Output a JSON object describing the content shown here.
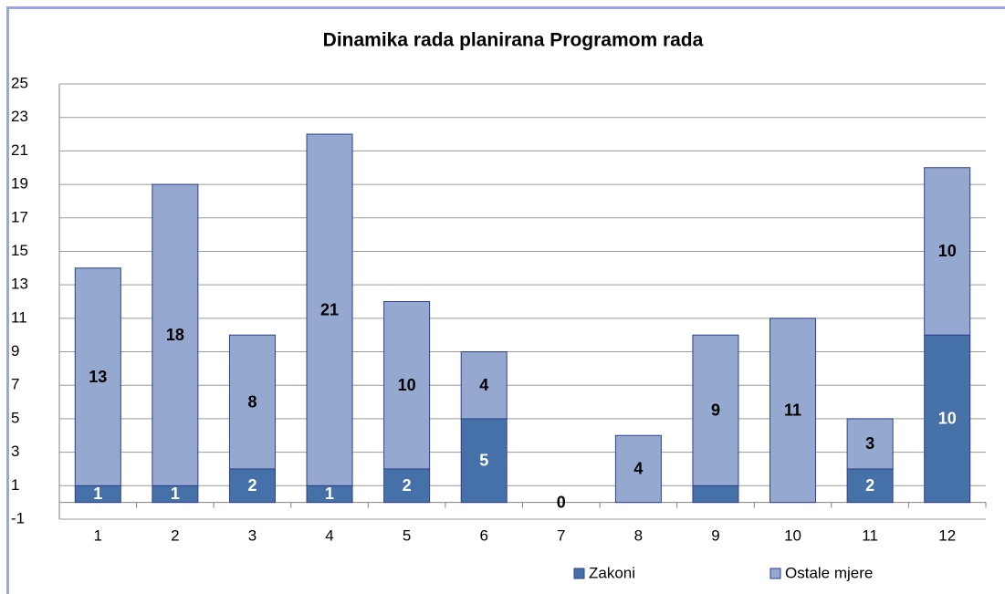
{
  "chart_data": {
    "type": "stacked_bar",
    "title": "Dinamika rada planirana Programom rada",
    "categories": [
      "1",
      "2",
      "3",
      "4",
      "5",
      "6",
      "7",
      "8",
      "9",
      "10",
      "11",
      "12"
    ],
    "series": [
      {
        "name": "Zakoni",
        "color": "#4670a8",
        "values": [
          1,
          1,
          2,
          1,
          2,
          5,
          0,
          0,
          1,
          0,
          2,
          10
        ],
        "value_labels": [
          "1",
          "1",
          "2",
          "1",
          "2",
          "5",
          "0",
          null,
          null,
          null,
          "2",
          "10"
        ]
      },
      {
        "name": "Ostale mjere",
        "color": "#95a8d0",
        "values": [
          13,
          18,
          8,
          21,
          10,
          4,
          0,
          4,
          9,
          11,
          3,
          10
        ],
        "value_labels": [
          "13",
          "18",
          "8",
          "21",
          "10",
          "4",
          null,
          "4",
          "9",
          "11",
          "3",
          "10"
        ]
      }
    ],
    "ylim": [
      -1,
      25
    ],
    "yticks": [
      -1,
      1,
      3,
      5,
      7,
      9,
      11,
      13,
      15,
      17,
      19,
      21,
      23,
      25
    ],
    "grid": true,
    "legend": "bottom"
  }
}
